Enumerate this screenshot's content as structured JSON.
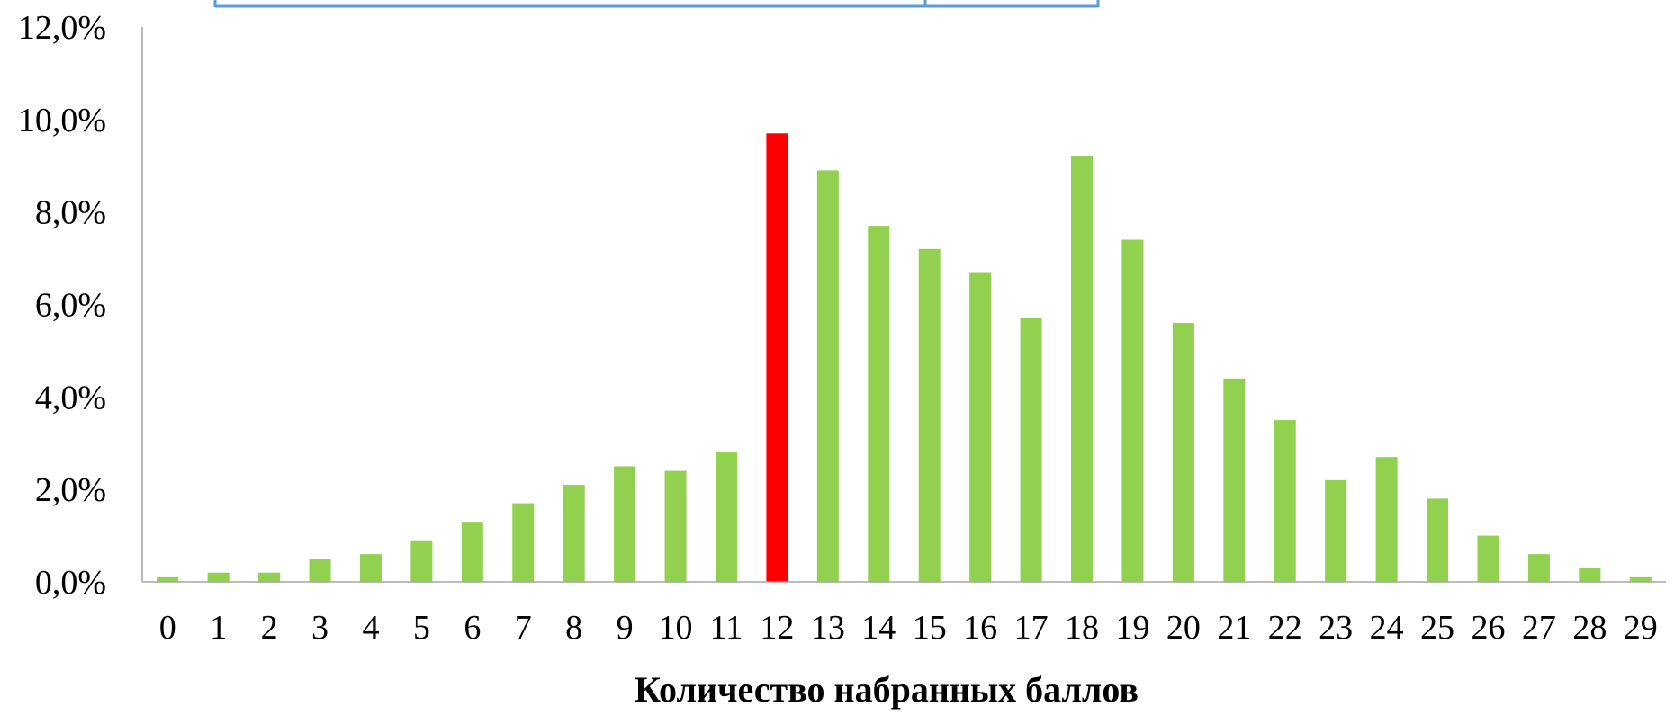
{
  "chart_data": {
    "type": "bar",
    "title": "",
    "xlabel": "Количество набранных баллов",
    "ylabel": "",
    "ylim": [
      0,
      12
    ],
    "yticks": [
      "0,0%",
      "2,0%",
      "4,0%",
      "6,0%",
      "8,0%",
      "10,0%",
      "12,0%"
    ],
    "yticks_values": [
      0,
      2,
      4,
      6,
      8,
      10,
      12
    ],
    "categories": [
      "0",
      "1",
      "2",
      "3",
      "4",
      "5",
      "6",
      "7",
      "8",
      "9",
      "10",
      "11",
      "12",
      "13",
      "14",
      "15",
      "16",
      "17",
      "18",
      "19",
      "20",
      "21",
      "22",
      "23",
      "24",
      "25",
      "26",
      "27",
      "28",
      "29"
    ],
    "values": [
      0.1,
      0.2,
      0.2,
      0.5,
      0.6,
      0.9,
      1.3,
      1.7,
      2.1,
      2.5,
      2.4,
      2.8,
      9.7,
      8.9,
      7.7,
      7.2,
      6.7,
      5.7,
      9.2,
      7.4,
      5.6,
      4.4,
      3.5,
      2.2,
      2.7,
      1.8,
      1.0,
      0.6,
      0.3,
      0.1
    ],
    "highlight_category": "12",
    "grid": false,
    "legend": "none",
    "colors": {
      "bar": "#92d050",
      "highlight": "#ff0000",
      "axis": "#a6a6a6",
      "box_border": "#5b9bd5"
    }
  }
}
